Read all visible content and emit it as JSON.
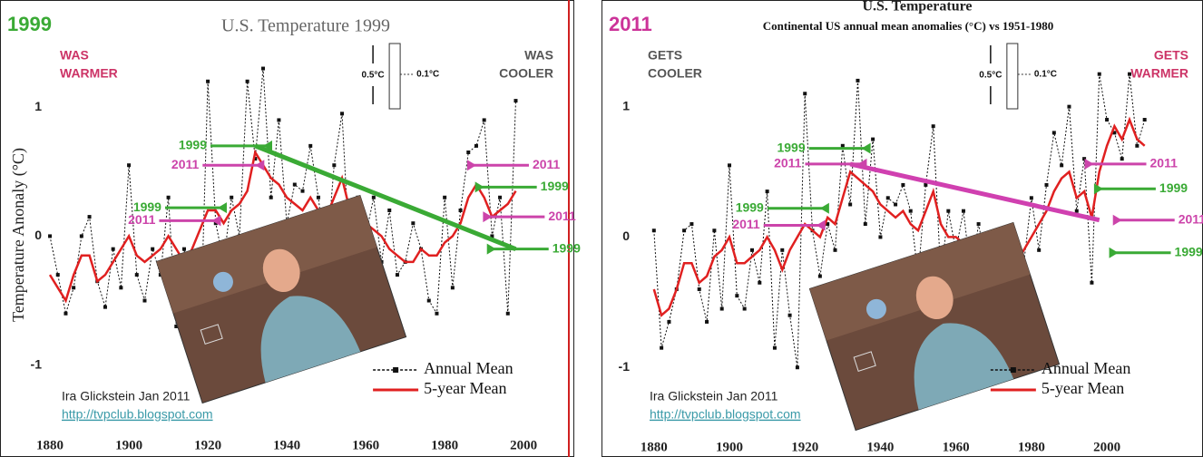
{
  "chart_data": [
    {
      "type": "line",
      "tag": "1999",
      "tag_color": "#3aaa35",
      "title": "U.S. Temperature 1999",
      "y_label": "Temperature Anonaly (°C)",
      "corner_left": [
        "WAS",
        "WARMER"
      ],
      "corner_left_color": "#cc3366",
      "corner_right": [
        "WAS",
        "COOLER"
      ],
      "corner_right_color": "#555555",
      "scale_labels": [
        "0.5°C",
        "0.1°C"
      ],
      "credit": "Ira Glickstein Jan 2011",
      "url": "http://tvpclub.blogspot.com",
      "xlim": [
        1879.3,
        2010.3
      ],
      "ylim": [
        -1.53,
        1.55
      ],
      "xticks": [
        1880,
        1900,
        1920,
        1940,
        1960,
        1980,
        2000
      ],
      "yticks": [
        -1,
        0,
        1
      ],
      "grid": true,
      "x": [
        1880,
        1882,
        1884,
        1886,
        1888,
        1890,
        1892,
        1894,
        1896,
        1898,
        1900,
        1902,
        1904,
        1906,
        1908,
        1910,
        1912,
        1914,
        1916,
        1918,
        1920,
        1922,
        1924,
        1926,
        1928,
        1930,
        1932,
        1934,
        1936,
        1938,
        1940,
        1942,
        1944,
        1946,
        1948,
        1950,
        1952,
        1954,
        1956,
        1958,
        1960,
        1962,
        1964,
        1966,
        1968,
        1970,
        1972,
        1974,
        1976,
        1978,
        1980,
        1982,
        1984,
        1986,
        1988,
        1990,
        1992,
        1994,
        1996,
        1998
      ],
      "series": [
        {
          "name": "Annual Mean",
          "color": "#111111",
          "values": [
            0.0,
            -0.3,
            -0.6,
            -0.4,
            0.0,
            0.15,
            -0.35,
            -0.55,
            -0.1,
            -0.4,
            0.55,
            -0.3,
            -0.5,
            -0.1,
            -0.3,
            0.3,
            -0.7,
            -0.1,
            -0.6,
            -0.9,
            1.2,
            0.1,
            -0.2,
            0.3,
            0.0,
            1.2,
            0.6,
            1.3,
            0.3,
            0.9,
            0.1,
            0.4,
            0.35,
            0.7,
            0.3,
            -0.2,
            0.55,
            0.95,
            -0.2,
            0.3,
            0.0,
            0.3,
            -0.2,
            0.2,
            -0.3,
            -0.2,
            0.1,
            -0.1,
            -0.5,
            -0.6,
            0.3,
            -0.4,
            0.2,
            0.65,
            0.7,
            0.9,
            0.0,
            0.3,
            -0.6,
            1.05
          ]
        },
        {
          "name": "5-year Mean",
          "color": "#e02020",
          "values": [
            -0.3,
            -0.4,
            -0.5,
            -0.3,
            -0.15,
            -0.15,
            -0.35,
            -0.3,
            -0.2,
            -0.1,
            0.0,
            -0.15,
            -0.2,
            -0.15,
            -0.1,
            0.0,
            -0.1,
            -0.2,
            -0.1,
            0.05,
            0.2,
            0.2,
            0.1,
            0.2,
            0.25,
            0.35,
            0.65,
            0.55,
            0.45,
            0.4,
            0.3,
            0.25,
            0.2,
            0.3,
            0.2,
            0.15,
            0.3,
            0.45,
            0.2,
            0.1,
            0.1,
            0.05,
            0.0,
            -0.1,
            -0.15,
            -0.2,
            -0.2,
            -0.1,
            -0.15,
            -0.15,
            -0.05,
            0.0,
            0.1,
            0.3,
            0.4,
            0.3,
            0.15,
            0.2,
            0.25,
            0.35
          ]
        }
      ],
      "trend": {
        "color": "#3aaa35",
        "x": [
          1932,
          1998
        ],
        "y": [
          0.7,
          -0.1
        ]
      },
      "arrows": [
        {
          "label": "1999",
          "color": "#3aaa35",
          "side": "left",
          "x": 1934,
          "y": 0.7
        },
        {
          "label": "2011",
          "color": "#cc44aa",
          "side": "left",
          "x": 1932,
          "y": 0.55
        },
        {
          "label": "1999",
          "color": "#3aaa35",
          "side": "left",
          "x": 1922.5,
          "y": 0.22
        },
        {
          "label": "2011",
          "color": "#cc44aa",
          "side": "left",
          "x": 1921,
          "y": 0.12
        },
        {
          "label": "2011",
          "color": "#cc44aa",
          "side": "right",
          "x": 1988,
          "y": 0.55
        },
        {
          "label": "1999",
          "color": "#3aaa35",
          "side": "right",
          "x": 1990,
          "y": 0.38
        },
        {
          "label": "2011",
          "color": "#cc44aa",
          "side": "right",
          "x": 1992,
          "y": 0.15
        },
        {
          "label": "1999",
          "color": "#3aaa35",
          "side": "right",
          "x": 1993,
          "y": -0.1
        }
      ]
    },
    {
      "type": "line",
      "tag": "2011",
      "tag_color": "#cc3399",
      "title": "U.S. Temperature",
      "subtitle": "Continental US annual mean anomalies (°C) vs 1951-1980",
      "corner_left": [
        "GETS",
        "COOLER"
      ],
      "corner_left_color": "#555555",
      "corner_right": [
        "GETS",
        "WARMER"
      ],
      "corner_right_color": "#cc3366",
      "scale_labels": [
        "0.5°C",
        "0.1°C"
      ],
      "credit": "Ira Glickstein Jan 2011",
      "url": "http://tvpclub.blogspot.com",
      "xlim": [
        1875,
        2024.5
      ],
      "ylim": [
        -1.52,
        1.54
      ],
      "xticks": [
        1880,
        1900,
        1920,
        1940,
        1960,
        1980,
        2000
      ],
      "yticks": [
        -1,
        0,
        1
      ],
      "grid": true,
      "x": [
        1880,
        1882,
        1884,
        1886,
        1888,
        1890,
        1892,
        1894,
        1896,
        1898,
        1900,
        1902,
        1904,
        1906,
        1908,
        1910,
        1912,
        1914,
        1916,
        1918,
        1920,
        1922,
        1924,
        1926,
        1928,
        1930,
        1932,
        1934,
        1936,
        1938,
        1940,
        1942,
        1944,
        1946,
        1948,
        1950,
        1952,
        1954,
        1956,
        1958,
        1960,
        1962,
        1964,
        1966,
        1968,
        1970,
        1972,
        1974,
        1976,
        1978,
        1980,
        1982,
        1984,
        1986,
        1988,
        1990,
        1992,
        1994,
        1996,
        1998,
        2000,
        2002,
        2004,
        2006,
        2008,
        2010
      ],
      "series": [
        {
          "name": "Annual Mean",
          "color": "#111111",
          "values": [
            0.05,
            -0.85,
            -0.65,
            -0.4,
            0.05,
            0.1,
            -0.4,
            -0.65,
            0.05,
            -0.55,
            0.55,
            -0.45,
            -0.55,
            -0.1,
            -0.35,
            0.35,
            -0.85,
            -0.1,
            -0.6,
            -1.0,
            1.1,
            0.05,
            -0.3,
            0.1,
            -0.1,
            0.7,
            0.25,
            1.2,
            0.1,
            0.75,
            0.0,
            0.3,
            0.25,
            0.4,
            0.2,
            -0.3,
            0.4,
            0.85,
            -0.3,
            0.2,
            -0.1,
            0.2,
            -0.3,
            0.1,
            -0.2,
            -0.2,
            0.0,
            -0.1,
            -0.5,
            -0.2,
            0.3,
            -0.1,
            0.4,
            0.8,
            0.55,
            1.0,
            0.2,
            0.6,
            -0.35,
            1.25,
            0.9,
            0.8,
            0.6,
            1.25,
            0.7,
            0.9
          ]
        },
        {
          "name": "5-year Mean",
          "color": "#e02020",
          "values": [
            -0.4,
            -0.6,
            -0.55,
            -0.4,
            -0.2,
            -0.2,
            -0.35,
            -0.3,
            -0.15,
            -0.1,
            0.0,
            -0.2,
            -0.2,
            -0.15,
            -0.1,
            0.0,
            -0.1,
            -0.25,
            -0.1,
            0.0,
            0.1,
            0.05,
            0.0,
            0.15,
            0.1,
            0.3,
            0.5,
            0.45,
            0.4,
            0.35,
            0.25,
            0.2,
            0.15,
            0.2,
            0.1,
            0.05,
            0.2,
            0.35,
            0.1,
            0.0,
            0.0,
            -0.05,
            -0.1,
            -0.15,
            -0.2,
            -0.2,
            -0.15,
            -0.1,
            -0.2,
            -0.1,
            0.0,
            0.1,
            0.2,
            0.35,
            0.45,
            0.5,
            0.3,
            0.35,
            0.15,
            0.5,
            0.7,
            0.85,
            0.75,
            0.9,
            0.75,
            0.7
          ]
        }
      ],
      "trend": {
        "color": "#d040b0",
        "x": [
          1932,
          1998
        ],
        "y": [
          0.56,
          0.13
        ]
      },
      "arrows": [
        {
          "label": "1999",
          "color": "#3aaa35",
          "side": "left",
          "x": 1935,
          "y": 0.68
        },
        {
          "label": "2011",
          "color": "#cc44aa",
          "side": "left",
          "x": 1934,
          "y": 0.56
        },
        {
          "label": "1999",
          "color": "#3aaa35",
          "side": "left",
          "x": 1924,
          "y": 0.22
        },
        {
          "label": "2011",
          "color": "#cc44aa",
          "side": "left",
          "x": 1923,
          "y": 0.09
        },
        {
          "label": "2011",
          "color": "#cc44aa",
          "side": "right",
          "x": 1996.5,
          "y": 0.56
        },
        {
          "label": "1999",
          "color": "#3aaa35",
          "side": "right",
          "x": 1999,
          "y": 0.37
        },
        {
          "label": "2011",
          "color": "#cc44aa",
          "side": "right",
          "x": 2004,
          "y": 0.13
        },
        {
          "label": "1999",
          "color": "#3aaa35",
          "side": "right",
          "x": 2003,
          "y": -0.12
        }
      ]
    }
  ]
}
